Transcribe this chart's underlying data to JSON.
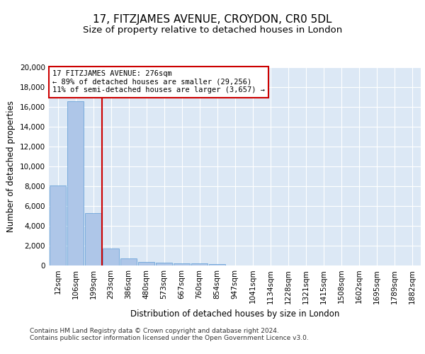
{
  "title_line1": "17, FITZJAMES AVENUE, CROYDON, CR0 5DL",
  "title_line2": "Size of property relative to detached houses in London",
  "xlabel": "Distribution of detached houses by size in London",
  "ylabel": "Number of detached properties",
  "bar_labels": [
    "12sqm",
    "106sqm",
    "199sqm",
    "293sqm",
    "386sqm",
    "480sqm",
    "573sqm",
    "667sqm",
    "760sqm",
    "854sqm",
    "947sqm",
    "1041sqm",
    "1134sqm",
    "1228sqm",
    "1321sqm",
    "1415sqm",
    "1508sqm",
    "1602sqm",
    "1695sqm",
    "1789sqm",
    "1882sqm"
  ],
  "bar_values": [
    8100,
    16600,
    5300,
    1750,
    680,
    350,
    270,
    210,
    200,
    150,
    0,
    0,
    0,
    0,
    0,
    0,
    0,
    0,
    0,
    0,
    0
  ],
  "bar_color": "#aec6e8",
  "bar_edge_color": "#5b9bd5",
  "vline_x": 2.5,
  "vline_color": "#cc0000",
  "annotation_text": "17 FITZJAMES AVENUE: 276sqm\n← 89% of detached houses are smaller (29,256)\n11% of semi-detached houses are larger (3,657) →",
  "annotation_box_color": "#ffffff",
  "annotation_box_edge": "#cc0000",
  "ylim": [
    0,
    20000
  ],
  "yticks": [
    0,
    2000,
    4000,
    6000,
    8000,
    10000,
    12000,
    14000,
    16000,
    18000,
    20000
  ],
  "background_color": "#dce8f5",
  "footer_text": "Contains HM Land Registry data © Crown copyright and database right 2024.\nContains public sector information licensed under the Open Government Licence v3.0.",
  "title_fontsize": 11,
  "subtitle_fontsize": 9.5,
  "axis_label_fontsize": 8.5,
  "tick_fontsize": 7.5,
  "annotation_fontsize": 7.5,
  "footer_fontsize": 6.5
}
